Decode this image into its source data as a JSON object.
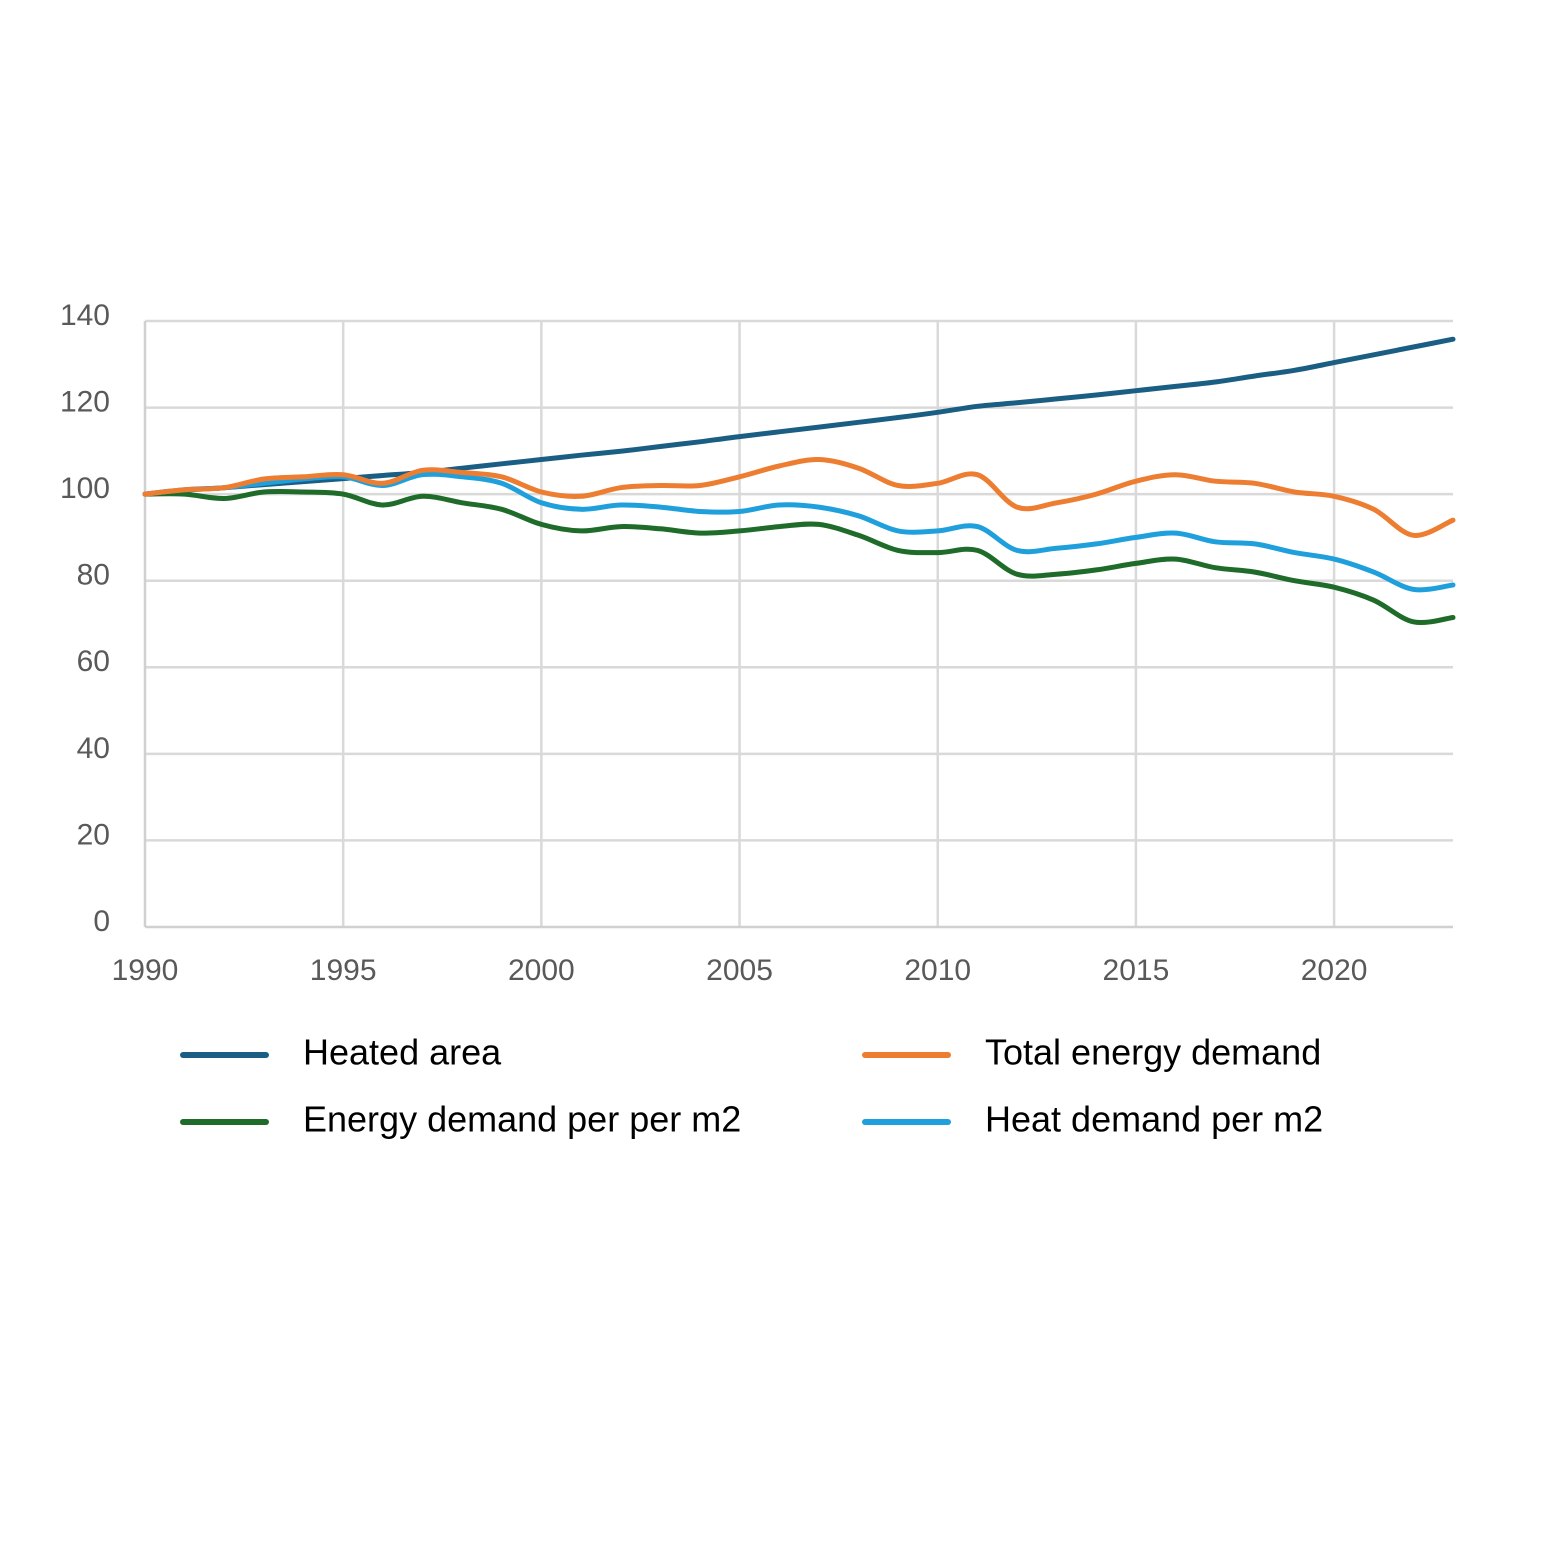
{
  "chart_data": {
    "type": "line",
    "title": "",
    "xlabel": "",
    "ylabel": "",
    "xlim": [
      1990,
      2023
    ],
    "ylim": [
      0,
      140
    ],
    "x_ticks": [
      "1990",
      "1995",
      "2000",
      "2005",
      "2010",
      "2015",
      "2020"
    ],
    "y_ticks": [
      "0",
      "20",
      "40",
      "60",
      "80",
      "100",
      "120",
      "140"
    ],
    "grid": true,
    "legend_position": "bottom",
    "x": [
      1990,
      1991,
      1992,
      1993,
      1994,
      1995,
      1996,
      1997,
      1998,
      1999,
      2000,
      2001,
      2002,
      2003,
      2004,
      2005,
      2006,
      2007,
      2008,
      2009,
      2010,
      2011,
      2012,
      2013,
      2014,
      2015,
      2016,
      2017,
      2018,
      2019,
      2020,
      2021,
      2022,
      2023
    ],
    "series": [
      {
        "name": "Heated area",
        "color": "#1b5e84",
        "values": [
          100,
          100.9,
          101.5,
          102.2,
          102.9,
          103.6,
          104.3,
          105,
          106,
          107,
          108,
          109,
          109.9,
          111,
          112.1,
          113.3,
          114.4,
          115.5,
          116.6,
          117.7,
          118.9,
          120.3,
          121.1,
          122,
          122.9,
          123.9,
          124.9,
          125.9,
          127.3,
          128.6,
          130.4,
          132.2,
          134,
          135.8
        ]
      },
      {
        "name": "Total energy demand",
        "color": "#ed7d31",
        "values": [
          100,
          101,
          101.5,
          103.5,
          104,
          104.5,
          102.5,
          105.5,
          105,
          104,
          100.5,
          99.5,
          101.5,
          102,
          102,
          104,
          106.5,
          108,
          106,
          102,
          102.5,
          104.5,
          97,
          98,
          100,
          103,
          104.5,
          103,
          102.5,
          100.5,
          99.5,
          96.5,
          90.5,
          94
        ]
      },
      {
        "name": "Energy demand per per m2",
        "color": "#1e6b2a",
        "values": [
          100,
          100,
          99,
          100.5,
          100.5,
          100,
          97.5,
          99.5,
          98,
          96.5,
          93,
          91.5,
          92.5,
          92,
          91,
          91.5,
          92.5,
          93,
          90.5,
          87,
          86.5,
          87,
          81.5,
          81.5,
          82.5,
          84,
          85,
          83,
          82,
          80,
          78.5,
          75.5,
          70.5,
          71.5
        ]
      },
      {
        "name": "Heat demand per m2",
        "color": "#1fa0dc",
        "values": [
          100,
          101,
          101.5,
          102.5,
          103.5,
          104,
          102,
          104.5,
          104,
          102.5,
          98,
          96.5,
          97.5,
          97,
          96,
          96,
          97.5,
          97,
          95,
          91.5,
          91.5,
          92.5,
          87,
          87.5,
          88.5,
          90,
          91,
          89,
          88.5,
          86.5,
          85,
          82,
          78,
          79
        ]
      }
    ]
  }
}
